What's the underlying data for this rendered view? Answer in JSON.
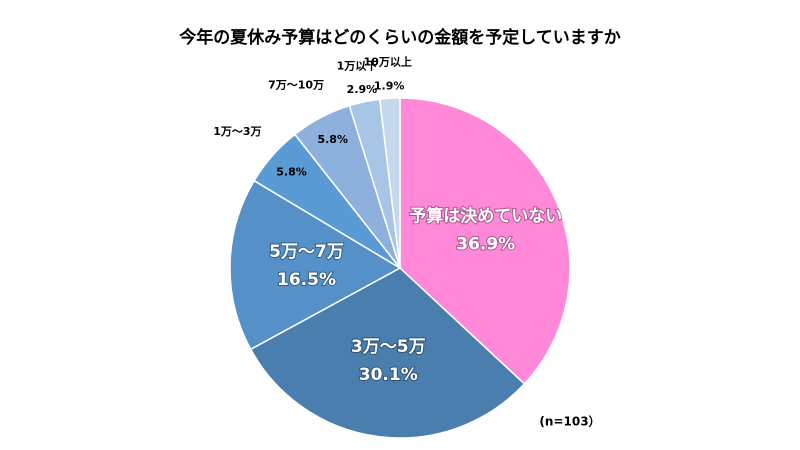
{
  "chart_data": {
    "type": "pie",
    "title": "今年の夏休み予算はどのくらいの金額を予定していますか",
    "categories": [
      "予算は決めていない",
      "3万～5万",
      "5万～7万",
      "1万～3万",
      "7万～10万",
      "1万以下",
      "10万以上"
    ],
    "values": [
      36.9,
      30.1,
      16.5,
      5.8,
      5.8,
      2.9,
      1.9
    ],
    "value_labels": [
      "36.9%",
      "30.1%",
      "16.5%",
      "5.8%",
      "5.8%",
      "2.9%",
      "1.9%"
    ],
    "colors": [
      "#ff88d8",
      "#4a7eae",
      "#5590c8",
      "#5b9bd5",
      "#8eb0dc",
      "#a9c5e6",
      "#c5d8ee"
    ],
    "annotation": "(n=103）"
  }
}
